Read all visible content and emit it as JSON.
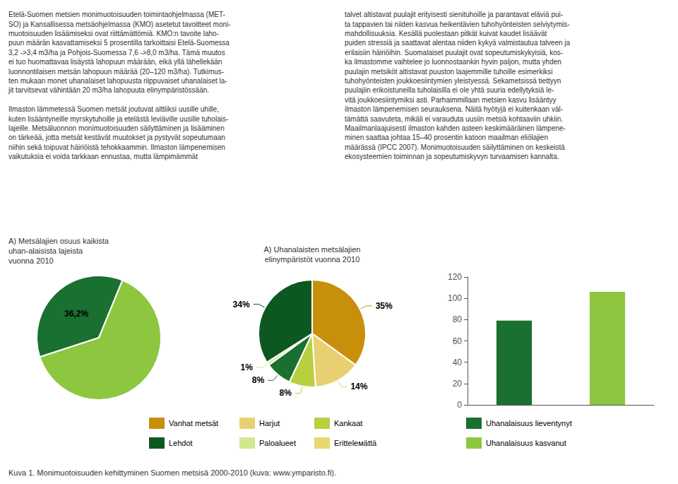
{
  "annotations": [
    "Etelä-Suomen metsien monimuotoisuuden toimintaohjelmassa (MET-\nSO) ja Kansallisessa metsäohjelmassa (KMO) asetetut tavoitteet moni-\nmuotoisuuden lisäämiseksi ovat riittämättömiä. KMO:n tavoite laho-\npuun määrän kasvattamiseksi 5 prosentilla tarkoittaisi Etelä-Suomessa\n3,2 ->3,4 m3/ha ja Pohjois-Suomessa 7,6 ->8,0 m3/ha. Tämä muutos\nei tuo huomattavaa lisäystä lahopuun määrään, eikä yllä lähellekään\nluonnontilaisen metsän lahopuun määrää (20–120 m3/ha). Tutkimus-\nten mukaan monet uhanalaiset lahopuusta riippuvaiset uhanalaiset la-\njit tarvitsevat vähintään 20 m3/ha lahopuuta elinympäristössään.\n\nIlmaston lämmetessä Suomen metsät joutuvat alttiiksi uusille uhille,\nkuten lisääntyneille myrskytuhoille ja etelästä leviäville uusille tuholais-\nlajeille. Metsäluonnon monimuotoisuuden säilyttäminen ja lisääminen\non tärkeää, jotta metsät kestävät muutokset ja pystyvät sopeutumaan\nniihin sekä toipuvat häiriöistä tehokkaammin. Ilmaston lämpenemisen\nvaikutuksia ei voida tarkkaan ennustaa, mutta lämpimämmät",
    "talvet altistavat puulajit erityisesti sienituhoille ja parantavat eläviä pui-\nta tappavien tai niiden kasvua heikentävien tuhohyönteisten selviytymis-\nmahdollisuuksia. Kesällä puolestaan pitkät kuivat kaudet lisäävät\npuiden stressiä ja saattavat alentaa niiden kykyä valmistautua talveen ja\nerilaisiin häiriöihin. Suomalaiset puulajit ovat sopeutumiskykyisiä, kos-\nka ilmastomme vaihtelee jo luonnostaankin hyvin paljon, mutta yhden\npuulajin metsiköt altistavat puuston laajemmille tuhoille esimerkiksi\ntuhohyönteisten joukkoesiintymien yleistyessä. Sekametsissä tiettyyn\npuulajiin erikoistuneilla tuholaisilla ei ole yhtä suuria edellytyksiä le-\nvitä joukkoesiintymiksi asti. Parhaimmillaan metsien kasvu lisääntyy\nilmaston lämpenemisen seurauksena. Näitä hyötyjä ei kuitenkaan väl-\ntämättä saavuteta, mikäli ei varauduta uusiin metsiä kohtaaviin uhkiin.\nMaailmanlaajuisesti ilmaston kahden asteen keskimääräinen lämpene-\nminen saattaa johtaa 15–40 prosentin katoon maailman eliölajien\nmäärässä (IPCC 2007). Monimuotoisuuden säilyttäminen on keskeistä\nekosysteemien toiminnan ja sopeutumiskyvyn turvaamisen kannalta.",
    "Kuva 1. Monimuotoisuuden kehittyminen Suomen metsisä 2000-2010 (kuva: www.ymparisto.fi)."
  ],
  "legend_entries": [
    {
      "name": "Vanhat metsät",
      "color": "#c8900a"
    },
    {
      "name": "Harjut",
      "color": "#e8d070"
    },
    {
      "name": "Kankaat",
      "color": "#b8d040"
    },
    {
      "name": "Uhanalaisuus lieventynyt",
      "color": "#1a7030"
    },
    {
      "name": "Lehdot",
      "color": "#0d5820"
    },
    {
      "name": "Paloalueet",
      "color": "#d0e890"
    },
    {
      "name": "Erittelемättä",
      "color": "#e8d870"
    },
    {
      "name": "Uhanalaisuus kasvanut",
      "color": "#8dc63f"
    }
  ],
  "chart_data": [
    {
      "type": "pie",
      "title": "A) Metsälajien osuus kaikista\nuhan-alaisista lajeista\nvuonna 2010",
      "values": [
        36.2,
        63.8
      ],
      "value_labels": [
        "36,2%",
        null
      ],
      "colors": [
        "#1a7030",
        "#8dc63f"
      ],
      "data_labels": true
    },
    {
      "type": "pie",
      "title": "A) Uhanalaisten metsälajien\nelinympäristöt vuonna 2010",
      "values": [
        35,
        14,
        8,
        8,
        1,
        34
      ],
      "value_labels": [
        "35%",
        "14%",
        "8%",
        "8%",
        "1%",
        "34%"
      ],
      "colors": [
        "#c8900a",
        "#e8d070",
        "#b8d040",
        "#1a7030",
        "#d0e890",
        "#0d5820"
      ],
      "data_labels": true
    },
    {
      "type": "bar",
      "categories": [
        null,
        null
      ],
      "values": [
        79,
        106
      ],
      "colors": [
        "#1a7030",
        "#8dc63f"
      ],
      "ylim": [
        0,
        120
      ],
      "yticks": [
        0,
        20,
        40,
        60,
        80,
        100,
        120
      ],
      "grid": false,
      "tick_labels": "y"
    }
  ]
}
